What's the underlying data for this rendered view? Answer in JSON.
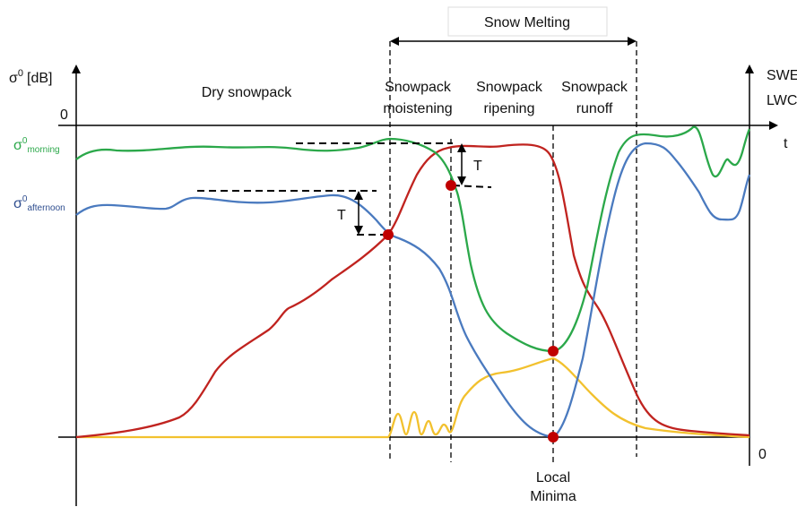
{
  "header": {
    "title": "Snow Melting"
  },
  "axes": {
    "left_label": {
      "base": "σ",
      "sup": "0",
      "rest": "[dB]"
    },
    "right_labels": [
      "SWE",
      "LWC"
    ],
    "left_zero": "0",
    "time": "t",
    "right_zero": "0"
  },
  "series_labels": {
    "morning": {
      "base": "σ",
      "sup": "0",
      "sub": "morning"
    },
    "afternoon": {
      "base": "σ",
      "sup": "0",
      "sub": "afternoon"
    }
  },
  "phases": {
    "dry": "Dry snowpack",
    "moistening": [
      "Snowpack",
      "moistening"
    ],
    "ripening": [
      "Snowpack",
      "ripening"
    ],
    "runoff": [
      "Snowpack",
      "runoff"
    ]
  },
  "annotations": {
    "t_left": "T",
    "t_right": "T",
    "local_minima": [
      "Local",
      "Minima"
    ]
  }
}
